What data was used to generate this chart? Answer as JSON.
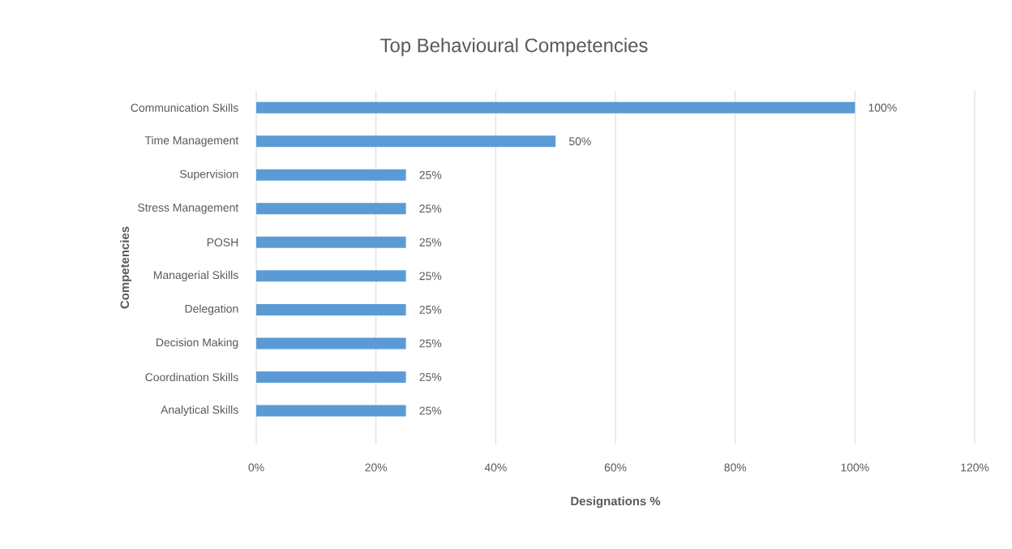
{
  "chart_data": {
    "type": "bar",
    "orientation": "horizontal",
    "title": "Top Behavioural Competencies",
    "xlabel": "Designations %",
    "ylabel": "Competencies",
    "categories": [
      "Communication Skills",
      "Time Management",
      "Supervision",
      "Stress Management",
      "POSH",
      "Managerial Skills",
      "Delegation",
      "Decision Making",
      "Coordination Skills",
      "Analytical Skills"
    ],
    "values": [
      100,
      50,
      25,
      25,
      25,
      25,
      25,
      25,
      25,
      25
    ],
    "value_labels": [
      "100%",
      "50%",
      "25%",
      "25%",
      "25%",
      "25%",
      "25%",
      "25%",
      "25%",
      "25%"
    ],
    "color": "#5b9bd5",
    "xlim": [
      0,
      120
    ],
    "xticks": [
      {
        "value": 0,
        "label": "0%"
      },
      {
        "value": 20,
        "label": "20%"
      },
      {
        "value": 40,
        "label": "40%"
      },
      {
        "value": 60,
        "label": "60%"
      },
      {
        "value": 80,
        "label": "80%"
      },
      {
        "value": 100,
        "label": "100%"
      },
      {
        "value": 120,
        "label": "120%"
      }
    ],
    "grid": "x"
  }
}
